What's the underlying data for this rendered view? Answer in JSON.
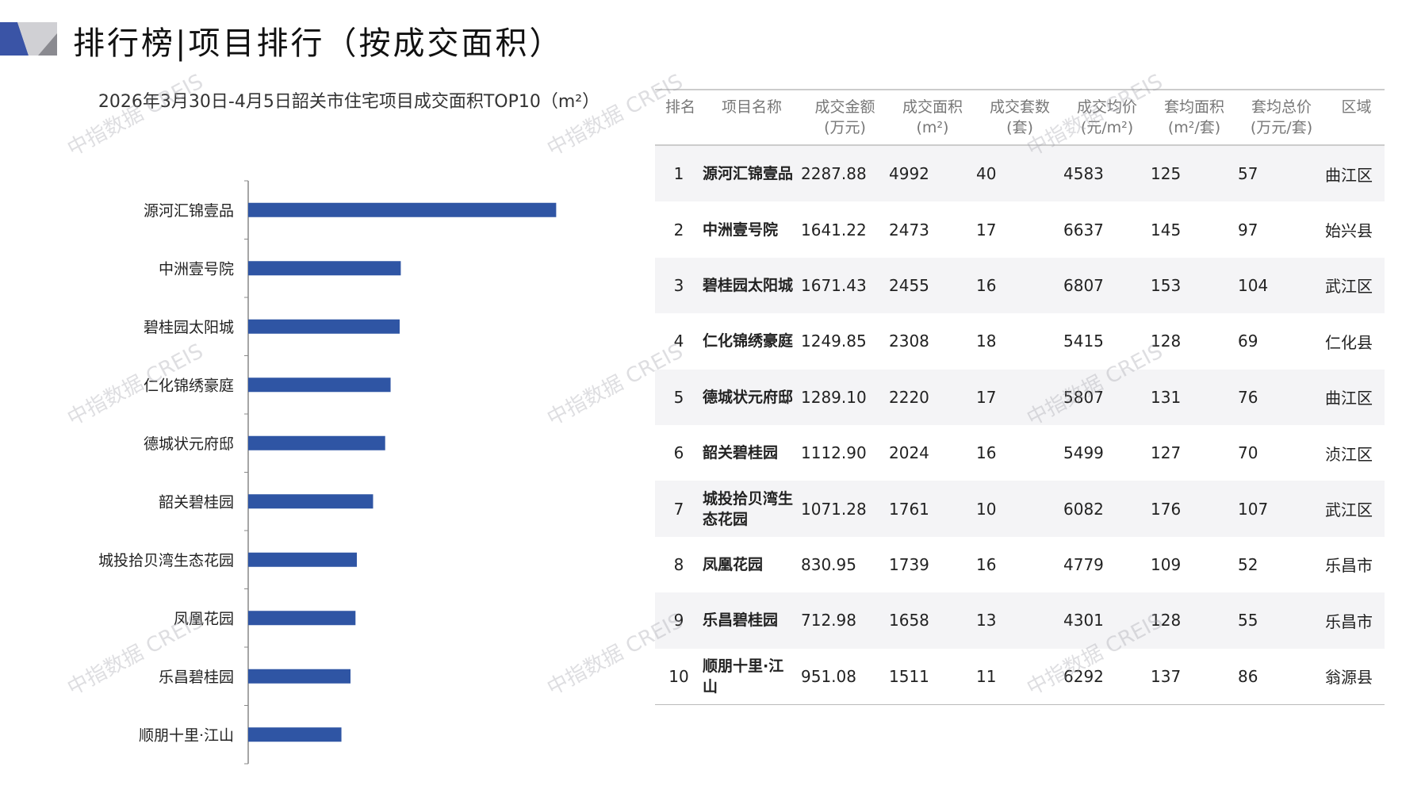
{
  "title": "排行榜|项目排行（按成交面积）",
  "watermark": "中指数据 CREIS",
  "colors": {
    "bar": "#2f55a4",
    "accent": "#3a54a6"
  },
  "chart_data": {
    "type": "bar",
    "orientation": "horizontal",
    "title": "2026年3月30日-4月5日韶关市住宅项目成交面积TOP10（m²）",
    "categories": [
      "源河汇锦壹品",
      "中洲壹号院",
      "碧桂园太阳城",
      "仁化锦绣豪庭",
      "德城状元府邸",
      "韶关碧桂园",
      "城投拾贝湾生态花园",
      "凤凰花园",
      "乐昌碧桂园",
      "顺朋十里·江山"
    ],
    "values": [
      4992,
      2473,
      2455,
      2308,
      2220,
      2024,
      1761,
      1739,
      1658,
      1511
    ],
    "grid": false
  },
  "table": {
    "headers": [
      [
        "排名",
        ""
      ],
      [
        "项目名称",
        ""
      ],
      [
        "成交金额",
        "(万元)"
      ],
      [
        "成交面积",
        "(m²)"
      ],
      [
        "成交套数",
        "(套)"
      ],
      [
        "成交均价",
        "(元/m²)"
      ],
      [
        "套均面积",
        "(m²/套)"
      ],
      [
        "套均总价",
        "(万元/套)"
      ],
      [
        "区域",
        ""
      ]
    ],
    "rows": [
      [
        "1",
        "源河汇锦壹品",
        "2287.88",
        "4992",
        "40",
        "4583",
        "125",
        "57",
        "曲江区"
      ],
      [
        "2",
        "中洲壹号院",
        "1641.22",
        "2473",
        "17",
        "6637",
        "145",
        "97",
        "始兴县"
      ],
      [
        "3",
        "碧桂园太阳城",
        "1671.43",
        "2455",
        "16",
        "6807",
        "153",
        "104",
        "武江区"
      ],
      [
        "4",
        "仁化锦绣豪庭",
        "1249.85",
        "2308",
        "18",
        "5415",
        "128",
        "69",
        "仁化县"
      ],
      [
        "5",
        "德城状元府邸",
        "1289.10",
        "2220",
        "17",
        "5807",
        "131",
        "76",
        "曲江区"
      ],
      [
        "6",
        "韶关碧桂园",
        "1112.90",
        "2024",
        "16",
        "5499",
        "127",
        "70",
        "浈江区"
      ],
      [
        "7",
        "城投拾贝湾生态花园",
        "1071.28",
        "1761",
        "10",
        "6082",
        "176",
        "107",
        "武江区"
      ],
      [
        "8",
        "凤凰花园",
        "830.95",
        "1739",
        "16",
        "4779",
        "109",
        "52",
        "乐昌市"
      ],
      [
        "9",
        "乐昌碧桂园",
        "712.98",
        "1658",
        "13",
        "4301",
        "128",
        "55",
        "乐昌市"
      ],
      [
        "10",
        "顺朋十里·江山",
        "951.08",
        "1511",
        "11",
        "6292",
        "137",
        "86",
        "翁源县"
      ]
    ]
  }
}
